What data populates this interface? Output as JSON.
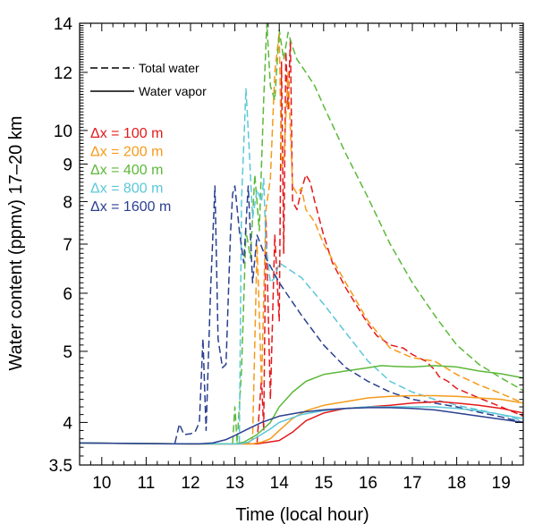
{
  "chart_data": {
    "type": "line",
    "title": "",
    "xlabel": "Time (local hour)",
    "ylabel": "Water content (ppmv) 17–20 km",
    "xlim": [
      9.5,
      19.5
    ],
    "ylim": [
      3.5,
      14
    ],
    "y_scale": "log",
    "x_ticks": [
      10,
      11,
      12,
      13,
      14,
      15,
      16,
      17,
      18,
      19
    ],
    "y_ticks": [
      3.5,
      4,
      5,
      6,
      7,
      8,
      9,
      10,
      12,
      14
    ],
    "grid": false,
    "legend": {
      "placement": "top-left",
      "line_styles": [
        {
          "style": "dashed",
          "label": "Total water"
        },
        {
          "style": "solid",
          "label": "Water vapor"
        }
      ],
      "resolutions": [
        {
          "label": "Δx = 100 m",
          "color": "#e31a1c"
        },
        {
          "label": "Δx = 200 m",
          "color": "#f59a1a"
        },
        {
          "label": "Δx = 400 m",
          "color": "#5cb83a"
        },
        {
          "label": "Δx = 800 m",
          "color": "#5bc8d8"
        },
        {
          "label": "Δx = 1600 m",
          "color": "#2a3f8f"
        }
      ]
    },
    "series": [
      {
        "color": "#e31a1c",
        "style": "dashed",
        "x": [
          13.5,
          13.6,
          13.65,
          13.7,
          13.8,
          13.9,
          14.0,
          14.05,
          14.1,
          14.15,
          14.2,
          14.25,
          14.3,
          14.4,
          14.5,
          14.6,
          14.7,
          14.8,
          15.0,
          15.2,
          15.5,
          15.8,
          16.0,
          16.2,
          16.5,
          16.8,
          17.0,
          17.3,
          17.5,
          17.6,
          17.8,
          18.0,
          18.5,
          19.0,
          19.5
        ],
        "y": [
          3.75,
          4.6,
          3.9,
          7.6,
          4.3,
          7.2,
          5.5,
          12.4,
          6.8,
          12.8,
          10.7,
          13.3,
          8.0,
          7.8,
          8.3,
          8.7,
          8.5,
          8.0,
          7.2,
          6.6,
          6.1,
          5.7,
          5.45,
          5.25,
          5.1,
          5.05,
          4.95,
          4.85,
          4.72,
          4.62,
          4.55,
          4.45,
          4.32,
          4.2,
          4.08
        ]
      },
      {
        "color": "#f59a1a",
        "style": "dashed",
        "x": [
          13.3,
          13.4,
          13.5,
          13.6,
          13.7,
          13.8,
          13.9,
          14.0,
          14.05,
          14.1,
          14.2,
          14.3,
          14.4,
          14.5,
          14.6,
          14.8,
          15.0,
          15.5,
          16.0,
          16.5,
          17.0,
          17.5,
          18.0,
          18.5,
          19.0,
          19.5
        ],
        "y": [
          3.75,
          3.8,
          7.0,
          4.5,
          7.8,
          8.6,
          12.0,
          13.6,
          8.9,
          9.1,
          12.0,
          8.4,
          8.2,
          8.35,
          7.8,
          7.5,
          7.0,
          6.2,
          5.5,
          5.05,
          4.9,
          4.85,
          4.65,
          4.5,
          4.38,
          4.25
        ]
      },
      {
        "color": "#5cb83a",
        "style": "dashed",
        "x": [
          12.95,
          13.0,
          13.05,
          13.15,
          13.25,
          13.35,
          13.45,
          13.55,
          13.65,
          13.72,
          13.8,
          13.9,
          14.0,
          14.1,
          14.2,
          14.3,
          14.4,
          14.6,
          14.8,
          15.0,
          15.5,
          16.0,
          16.5,
          17.0,
          17.5,
          18.0,
          18.5,
          19.0,
          19.5
        ],
        "y": [
          3.75,
          4.2,
          3.75,
          4.7,
          7.3,
          6.7,
          8.7,
          7.3,
          11.0,
          14.0,
          11.5,
          11.0,
          13.7,
          12.5,
          13.6,
          13.0,
          12.5,
          12.0,
          11.5,
          10.8,
          9.3,
          8.1,
          7.0,
          6.2,
          5.6,
          5.1,
          4.8,
          4.6,
          4.42
        ]
      },
      {
        "color": "#5bc8d8",
        "style": "dashed",
        "x": [
          13.1,
          13.15,
          13.25,
          13.3,
          13.4,
          13.5,
          13.6,
          13.65,
          13.7,
          13.8,
          13.9,
          14.0,
          14.5,
          15.0,
          15.5,
          16.0,
          16.5,
          17.0,
          17.5,
          18.0,
          18.5,
          19.0,
          19.5
        ],
        "y": [
          3.75,
          8.0,
          11.4,
          10.0,
          7.6,
          8.3,
          8.0,
          8.6,
          7.0,
          6.2,
          6.3,
          6.6,
          6.3,
          5.8,
          5.3,
          4.85,
          4.55,
          4.4,
          4.3,
          4.22,
          4.16,
          4.1,
          4.02
        ]
      },
      {
        "color": "#2a3f8f",
        "style": "dashed",
        "x": [
          11.65,
          11.75,
          11.85,
          12.0,
          12.1,
          12.2,
          12.28,
          12.35,
          12.45,
          12.55,
          12.62,
          12.72,
          12.8,
          12.9,
          12.95,
          13.0,
          13.1,
          13.2,
          13.3,
          13.4,
          13.5,
          13.7,
          14.0,
          14.5,
          15.0,
          15.5,
          16.0,
          16.5,
          17.0,
          17.5,
          18.0,
          18.5,
          19.0,
          19.5
        ],
        "y": [
          3.75,
          3.98,
          3.85,
          3.86,
          3.88,
          4.0,
          5.2,
          3.9,
          6.0,
          8.4,
          5.2,
          4.75,
          4.8,
          7.2,
          8.2,
          8.4,
          7.3,
          6.6,
          8.4,
          6.2,
          7.2,
          6.7,
          6.2,
          5.6,
          5.1,
          4.75,
          4.55,
          4.4,
          4.3,
          4.25,
          4.2,
          4.13,
          4.07,
          4.0
        ]
      },
      {
        "color": "#e31a1c",
        "style": "solid",
        "x": [
          9.5,
          12.0,
          13.5,
          14.0,
          14.3,
          14.6,
          15.0,
          15.5,
          16.0,
          16.5,
          17.0,
          17.3,
          17.6,
          18.0,
          18.5,
          19.0,
          19.5
        ],
        "y": [
          3.75,
          3.74,
          3.74,
          3.78,
          3.88,
          4.02,
          4.12,
          4.18,
          4.2,
          4.22,
          4.25,
          4.26,
          4.27,
          4.25,
          4.22,
          4.18,
          4.12
        ]
      },
      {
        "color": "#f59a1a",
        "style": "solid",
        "x": [
          9.5,
          12.0,
          13.4,
          13.6,
          13.8,
          14.0,
          14.3,
          14.6,
          15.0,
          15.5,
          16.0,
          16.5,
          17.0,
          17.5,
          18.0,
          18.5,
          19.0,
          19.5
        ],
        "y": [
          3.75,
          3.74,
          3.74,
          3.76,
          3.8,
          3.9,
          4.05,
          4.15,
          4.22,
          4.27,
          4.32,
          4.34,
          4.35,
          4.35,
          4.34,
          4.32,
          4.3,
          4.25
        ]
      },
      {
        "color": "#5cb83a",
        "style": "solid",
        "x": [
          9.5,
          12.0,
          13.0,
          13.2,
          13.5,
          13.8,
          14.0,
          14.3,
          14.6,
          15.0,
          15.5,
          16.0,
          16.3,
          16.6,
          17.0,
          17.5,
          18.0,
          18.5,
          19.0,
          19.5
        ],
        "y": [
          3.75,
          3.74,
          3.74,
          3.76,
          3.85,
          4.0,
          4.2,
          4.4,
          4.55,
          4.65,
          4.7,
          4.75,
          4.78,
          4.77,
          4.76,
          4.78,
          4.76,
          4.7,
          4.66,
          4.6
        ]
      },
      {
        "color": "#5bc8d8",
        "style": "solid",
        "x": [
          9.5,
          12.0,
          13.1,
          13.3,
          13.5,
          13.8,
          14.0,
          14.5,
          15.0,
          15.5,
          16.0,
          16.5,
          17.0,
          17.5,
          18.0,
          18.5,
          19.0,
          19.5
        ],
        "y": [
          3.75,
          3.74,
          3.74,
          3.76,
          3.82,
          3.92,
          4.0,
          4.1,
          4.15,
          4.18,
          4.2,
          4.2,
          4.2,
          4.2,
          4.18,
          4.15,
          4.1,
          4.05
        ]
      },
      {
        "color": "#2a3f8f",
        "style": "solid",
        "x": [
          9.5,
          11.5,
          12.2,
          12.5,
          12.8,
          13.0,
          13.3,
          13.6,
          14.0,
          14.5,
          15.0,
          15.5,
          16.0,
          16.5,
          17.0,
          17.5,
          18.0,
          18.5,
          19.0,
          19.5
        ],
        "y": [
          3.75,
          3.74,
          3.74,
          3.75,
          3.79,
          3.84,
          3.92,
          4.0,
          4.08,
          4.13,
          4.16,
          4.18,
          4.19,
          4.19,
          4.18,
          4.16,
          4.12,
          4.08,
          4.04,
          4.0
        ]
      }
    ]
  }
}
